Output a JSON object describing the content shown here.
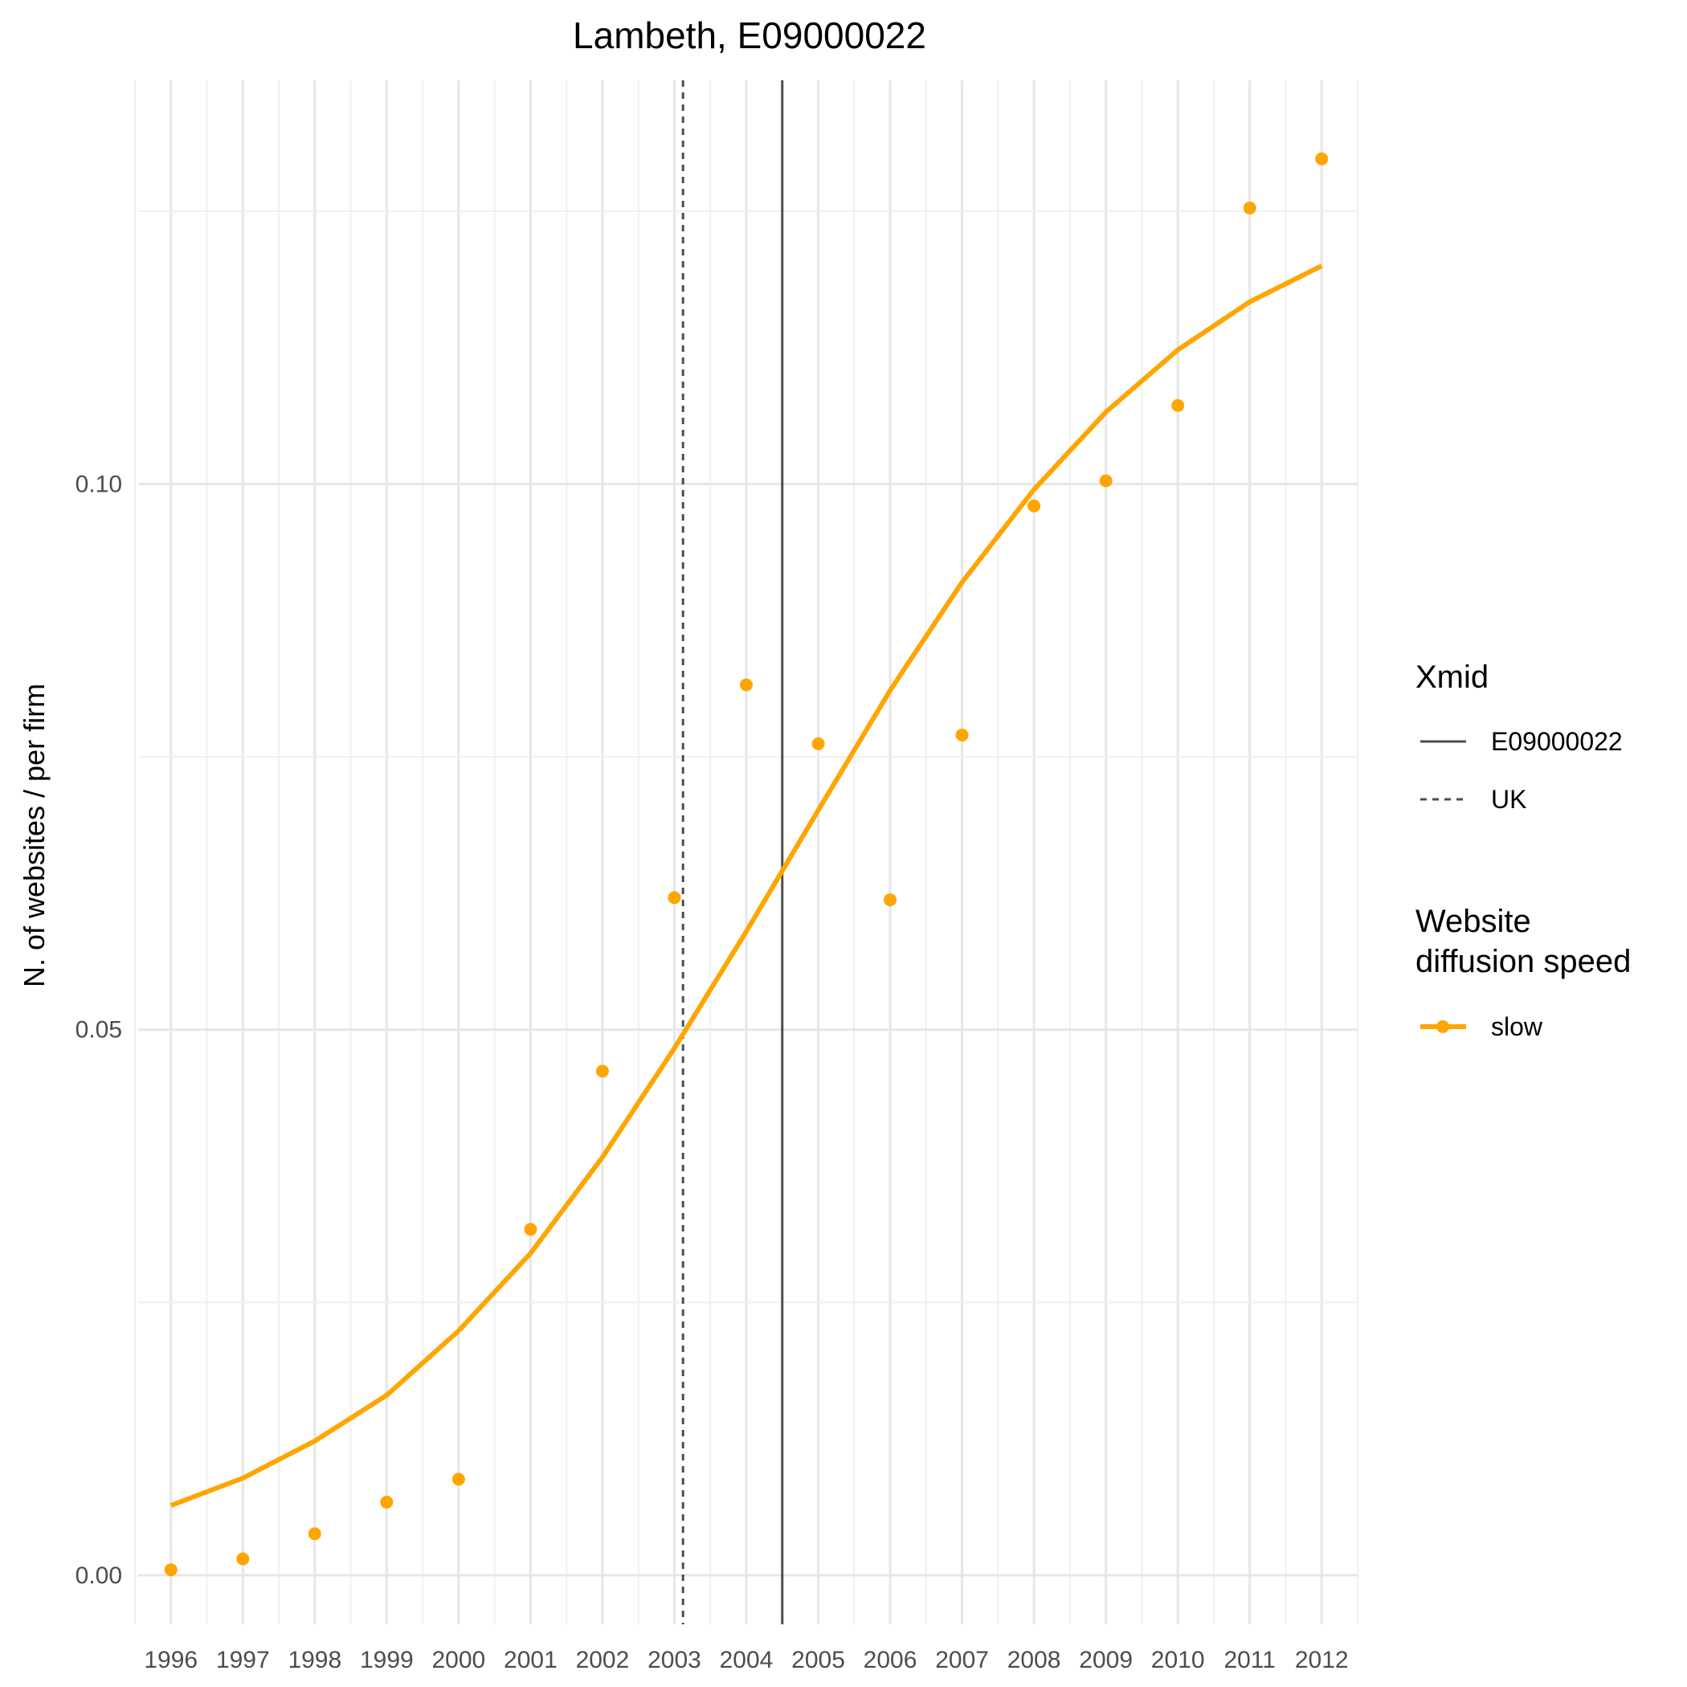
{
  "chart_data": {
    "type": "line",
    "title": "Lambeth, E09000022",
    "xlabel": "",
    "ylabel": "N. of websites / per firm",
    "x": [
      1996,
      1997,
      1998,
      1999,
      2000,
      2001,
      2002,
      2003,
      2004,
      2005,
      2006,
      2007,
      2008,
      2009,
      2010,
      2011,
      2012
    ],
    "x_tick_labels": [
      "1996",
      "1997",
      "1998",
      "1999",
      "2000",
      "2001",
      "2002",
      "2003",
      "2004",
      "2005",
      "2006",
      "2007",
      "2008",
      "2009",
      "2010",
      "2011",
      "2012"
    ],
    "xlim": [
      1995.5,
      2012.5
    ],
    "ylim": [
      -0.0045,
      0.137
    ],
    "y_ticks": [
      0.0,
      0.05,
      0.1
    ],
    "y_tick_labels": [
      "0.00",
      "0.05",
      "0.10"
    ],
    "grid": true,
    "series": [
      {
        "name": "slow",
        "color": "#FFA500",
        "observed": [
          0.0005,
          0.0015,
          0.0038,
          0.0067,
          0.0088,
          0.0317,
          0.0462,
          0.0621,
          0.0816,
          0.0762,
          0.0619,
          0.077,
          0.098,
          0.1003,
          0.1072,
          0.1253,
          0.1298
        ],
        "fitted": [
          0.0064,
          0.0089,
          0.0123,
          0.0165,
          0.0224,
          0.0295,
          0.0383,
          0.0483,
          0.059,
          0.0701,
          0.0811,
          0.091,
          0.0995,
          0.1066,
          0.1123,
          0.1167,
          0.12
        ]
      }
    ],
    "reference_lines": [
      {
        "name": "E09000022",
        "x": 2004.5,
        "style": "solid",
        "color": "#4d4d4d"
      },
      {
        "name": "UK",
        "x": 2003.12,
        "style": "dashed",
        "color": "#4d4d4d"
      }
    ],
    "legend": {
      "placement": "right",
      "groups": [
        {
          "title": "Xmid",
          "items": [
            "E09000022",
            "UK"
          ]
        },
        {
          "title_lines": [
            "Website",
            "diffusion speed"
          ],
          "items": [
            "slow"
          ]
        }
      ]
    }
  }
}
